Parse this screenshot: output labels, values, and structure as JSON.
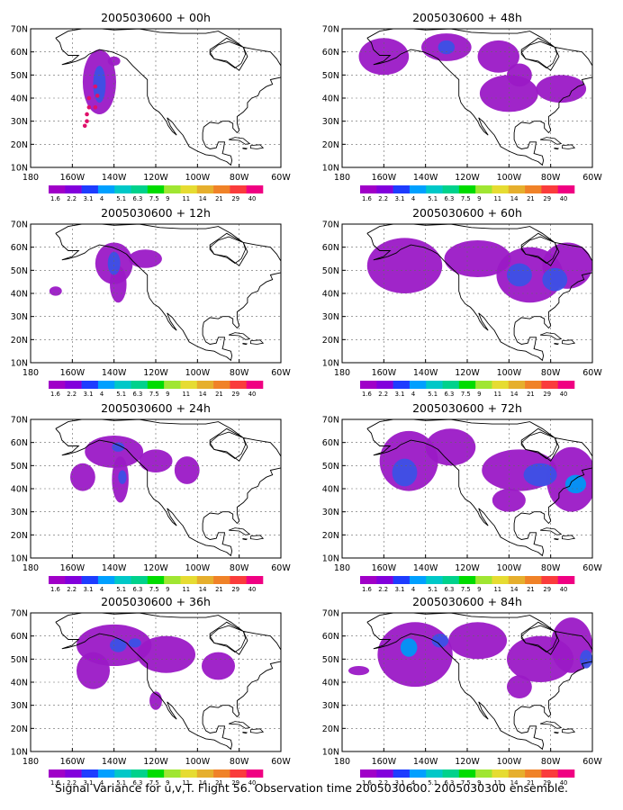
{
  "caption": "Signal Variance for u,v,T. Flight 56. Observation time 2005030600. 2005030300 ensemble.",
  "colorbar": {
    "labels": [
      "1.6",
      "2.2",
      "3.1",
      "4",
      "5.1",
      "6.3",
      "7.5",
      "9",
      "11",
      "14",
      "21",
      "29",
      "40"
    ],
    "colors": [
      "#a000c8",
      "#8200dc",
      "#1e3cff",
      "#00a0ff",
      "#00c8c8",
      "#00d28c",
      "#00dc00",
      "#a0e632",
      "#e6dc32",
      "#e6af2d",
      "#f08228",
      "#fa3c3c",
      "#f00082"
    ]
  },
  "map_colors": {
    "c1": "#9b19c6",
    "c2": "#3c50e6",
    "c3": "#0096f5"
  },
  "chart_data": [
    {
      "type": "heatmap",
      "title": "2005030600 + 00h",
      "xticks": [
        "180",
        "160W",
        "140W",
        "120W",
        "100W",
        "80W",
        "60W"
      ],
      "yticks": [
        "10N",
        "20N",
        "30N",
        "40N",
        "50N",
        "60N",
        "70N"
      ],
      "xlim": [
        -180,
        -60
      ],
      "ylim": [
        10,
        70
      ],
      "grid": true,
      "blobs": [
        {
          "lon": -147,
          "lat": 47,
          "rx": 8,
          "ry": 14,
          "level": 1
        },
        {
          "lon": -147,
          "lat": 46,
          "rx": 3,
          "ry": 8,
          "level": 2
        },
        {
          "lon": -140,
          "lat": 56,
          "rx": 3,
          "ry": 2,
          "level": 1
        }
      ],
      "track": [
        [
          -152,
          40
        ],
        [
          -152,
          36
        ],
        [
          -153,
          33
        ],
        [
          -153,
          30
        ],
        [
          -154,
          28
        ],
        [
          -149,
          45
        ],
        [
          -148,
          41
        ],
        [
          -149,
          36
        ]
      ]
    },
    {
      "type": "heatmap",
      "title": "2005030600 + 12h",
      "xticks": [
        "180",
        "160W",
        "140W",
        "120W",
        "100W",
        "80W",
        "60W"
      ],
      "yticks": [
        "10N",
        "20N",
        "30N",
        "40N",
        "50N",
        "60N",
        "70N"
      ],
      "xlim": [
        -180,
        -60
      ],
      "ylim": [
        10,
        70
      ],
      "grid": true,
      "blobs": [
        {
          "lon": -140,
          "lat": 53,
          "rx": 9,
          "ry": 9,
          "level": 1
        },
        {
          "lon": -138,
          "lat": 44,
          "rx": 4,
          "ry": 8,
          "level": 1
        },
        {
          "lon": -125,
          "lat": 55,
          "rx": 8,
          "ry": 4,
          "level": 1
        },
        {
          "lon": -140,
          "lat": 53,
          "rx": 3,
          "ry": 5,
          "level": 2
        },
        {
          "lon": -168,
          "lat": 41,
          "rx": 3,
          "ry": 2,
          "level": 1
        }
      ]
    },
    {
      "type": "heatmap",
      "title": "2005030600 + 24h",
      "xticks": [
        "180",
        "160W",
        "140W",
        "120W",
        "100W",
        "80W",
        "60W"
      ],
      "yticks": [
        "10N",
        "20N",
        "30N",
        "40N",
        "50N",
        "60N",
        "70N"
      ],
      "xlim": [
        -180,
        -60
      ],
      "ylim": [
        10,
        70
      ],
      "grid": true,
      "blobs": [
        {
          "lon": -140,
          "lat": 56,
          "rx": 14,
          "ry": 7,
          "level": 1
        },
        {
          "lon": -155,
          "lat": 45,
          "rx": 6,
          "ry": 6,
          "level": 1
        },
        {
          "lon": -137,
          "lat": 44,
          "rx": 4,
          "ry": 10,
          "level": 1
        },
        {
          "lon": -120,
          "lat": 52,
          "rx": 8,
          "ry": 5,
          "level": 1
        },
        {
          "lon": -105,
          "lat": 48,
          "rx": 6,
          "ry": 6,
          "level": 1
        },
        {
          "lon": -138,
          "lat": 58,
          "rx": 3,
          "ry": 2,
          "level": 2
        },
        {
          "lon": -136,
          "lat": 45,
          "rx": 2,
          "ry": 3,
          "level": 2
        }
      ]
    },
    {
      "type": "heatmap",
      "title": "2005030600 + 36h",
      "xticks": [
        "180",
        "160W",
        "140W",
        "120W",
        "100W",
        "80W",
        "60W"
      ],
      "yticks": [
        "10N",
        "20N",
        "30N",
        "40N",
        "50N",
        "60N",
        "70N"
      ],
      "xlim": [
        -180,
        -60
      ],
      "ylim": [
        10,
        70
      ],
      "grid": true,
      "blobs": [
        {
          "lon": -140,
          "lat": 56,
          "rx": 18,
          "ry": 9,
          "level": 1
        },
        {
          "lon": -150,
          "lat": 45,
          "rx": 8,
          "ry": 8,
          "level": 1
        },
        {
          "lon": -115,
          "lat": 52,
          "rx": 14,
          "ry": 8,
          "level": 1
        },
        {
          "lon": -90,
          "lat": 47,
          "rx": 8,
          "ry": 6,
          "level": 1
        },
        {
          "lon": -120,
          "lat": 32,
          "rx": 3,
          "ry": 4,
          "level": 1
        },
        {
          "lon": -138,
          "lat": 56,
          "rx": 4,
          "ry": 3,
          "level": 2
        },
        {
          "lon": -130,
          "lat": 57,
          "rx": 3,
          "ry": 2,
          "level": 2
        }
      ]
    },
    {
      "type": "heatmap",
      "title": "2005030600 + 48h",
      "xticks": [
        "180",
        "160W",
        "140W",
        "120W",
        "100W",
        "80W",
        "60W"
      ],
      "yticks": [
        "10N",
        "20N",
        "30N",
        "40N",
        "50N",
        "60N",
        "70N"
      ],
      "xlim": [
        -180,
        -60
      ],
      "ylim": [
        10,
        70
      ],
      "grid": true,
      "blobs": [
        {
          "lon": -160,
          "lat": 58,
          "rx": 12,
          "ry": 8,
          "level": 1
        },
        {
          "lon": -130,
          "lat": 62,
          "rx": 12,
          "ry": 6,
          "level": 1
        },
        {
          "lon": -105,
          "lat": 58,
          "rx": 10,
          "ry": 7,
          "level": 1
        },
        {
          "lon": -100,
          "lat": 42,
          "rx": 14,
          "ry": 8,
          "level": 1
        },
        {
          "lon": -75,
          "lat": 44,
          "rx": 12,
          "ry": 6,
          "level": 1
        },
        {
          "lon": -95,
          "lat": 50,
          "rx": 6,
          "ry": 5,
          "level": 1
        },
        {
          "lon": -130,
          "lat": 62,
          "rx": 4,
          "ry": 3,
          "level": 2
        }
      ]
    },
    {
      "type": "heatmap",
      "title": "2005030600 + 60h",
      "xticks": [
        "180",
        "160W",
        "140W",
        "120W",
        "100W",
        "80W",
        "60W"
      ],
      "yticks": [
        "10N",
        "20N",
        "30N",
        "40N",
        "50N",
        "60N",
        "70N"
      ],
      "xlim": [
        -180,
        -60
      ],
      "ylim": [
        10,
        70
      ],
      "grid": true,
      "blobs": [
        {
          "lon": -150,
          "lat": 52,
          "rx": 18,
          "ry": 12,
          "level": 1
        },
        {
          "lon": -115,
          "lat": 55,
          "rx": 16,
          "ry": 8,
          "level": 1
        },
        {
          "lon": -90,
          "lat": 48,
          "rx": 16,
          "ry": 12,
          "level": 1
        },
        {
          "lon": -72,
          "lat": 52,
          "rx": 12,
          "ry": 10,
          "level": 1
        },
        {
          "lon": -95,
          "lat": 48,
          "rx": 6,
          "ry": 5,
          "level": 2
        },
        {
          "lon": -78,
          "lat": 46,
          "rx": 6,
          "ry": 5,
          "level": 2
        }
      ]
    },
    {
      "type": "heatmap",
      "title": "2005030600 + 72h",
      "xticks": [
        "180",
        "160W",
        "140W",
        "120W",
        "100W",
        "80W",
        "60W"
      ],
      "yticks": [
        "10N",
        "20N",
        "30N",
        "40N",
        "50N",
        "60N",
        "70N"
      ],
      "xlim": [
        -180,
        -60
      ],
      "ylim": [
        10,
        70
      ],
      "grid": true,
      "blobs": [
        {
          "lon": -148,
          "lat": 52,
          "rx": 14,
          "ry": 13,
          "level": 1
        },
        {
          "lon": -128,
          "lat": 58,
          "rx": 12,
          "ry": 8,
          "level": 1
        },
        {
          "lon": -95,
          "lat": 48,
          "rx": 18,
          "ry": 9,
          "level": 1
        },
        {
          "lon": -70,
          "lat": 44,
          "rx": 12,
          "ry": 14,
          "level": 1
        },
        {
          "lon": -100,
          "lat": 35,
          "rx": 8,
          "ry": 5,
          "level": 1
        },
        {
          "lon": -150,
          "lat": 47,
          "rx": 6,
          "ry": 6,
          "level": 2
        },
        {
          "lon": -85,
          "lat": 46,
          "rx": 8,
          "ry": 5,
          "level": 2
        },
        {
          "lon": -68,
          "lat": 42,
          "rx": 5,
          "ry": 4,
          "level": 3
        }
      ]
    },
    {
      "type": "heatmap",
      "title": "2005030600 + 84h",
      "xticks": [
        "180",
        "160W",
        "140W",
        "120W",
        "100W",
        "80W",
        "60W"
      ],
      "yticks": [
        "10N",
        "20N",
        "30N",
        "40N",
        "50N",
        "60N",
        "70N"
      ],
      "xlim": [
        -180,
        -60
      ],
      "ylim": [
        10,
        70
      ],
      "grid": true,
      "blobs": [
        {
          "lon": -145,
          "lat": 52,
          "rx": 18,
          "ry": 14,
          "level": 1
        },
        {
          "lon": -115,
          "lat": 58,
          "rx": 14,
          "ry": 8,
          "level": 1
        },
        {
          "lon": -85,
          "lat": 50,
          "rx": 16,
          "ry": 10,
          "level": 1
        },
        {
          "lon": -70,
          "lat": 56,
          "rx": 10,
          "ry": 12,
          "level": 1
        },
        {
          "lon": -95,
          "lat": 38,
          "rx": 6,
          "ry": 5,
          "level": 1
        },
        {
          "lon": -172,
          "lat": 45,
          "rx": 5,
          "ry": 2,
          "level": 1
        },
        {
          "lon": -148,
          "lat": 55,
          "rx": 4,
          "ry": 4,
          "level": 3
        },
        {
          "lon": -133,
          "lat": 58,
          "rx": 4,
          "ry": 3,
          "level": 2
        },
        {
          "lon": -63,
          "lat": 50,
          "rx": 3,
          "ry": 4,
          "level": 2
        }
      ]
    }
  ]
}
